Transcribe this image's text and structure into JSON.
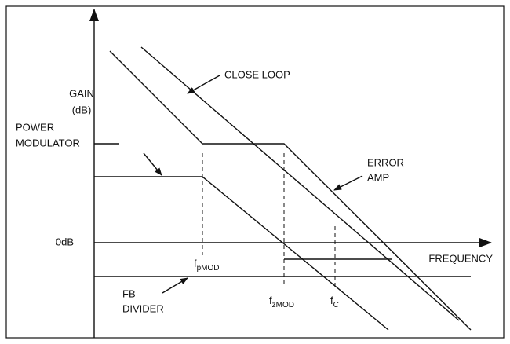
{
  "axis": {
    "y_label": [
      "GAIN",
      "(dB)"
    ],
    "zero_label": "0dB",
    "x_label": "FREQUENCY"
  },
  "curves": {
    "close_loop": "CLOSE LOOP",
    "error_amp": [
      "ERROR",
      "AMP"
    ],
    "power_modulator": [
      "POWER",
      "MODULATOR"
    ],
    "fb_divider": [
      "FB",
      "DIVIDER"
    ]
  },
  "frequencies": [
    {
      "symbol": "f",
      "subscript": "pMOD"
    },
    {
      "symbol": "f",
      "subscript": "zMOD"
    },
    {
      "symbol": "f",
      "subscript": "C"
    }
  ]
}
